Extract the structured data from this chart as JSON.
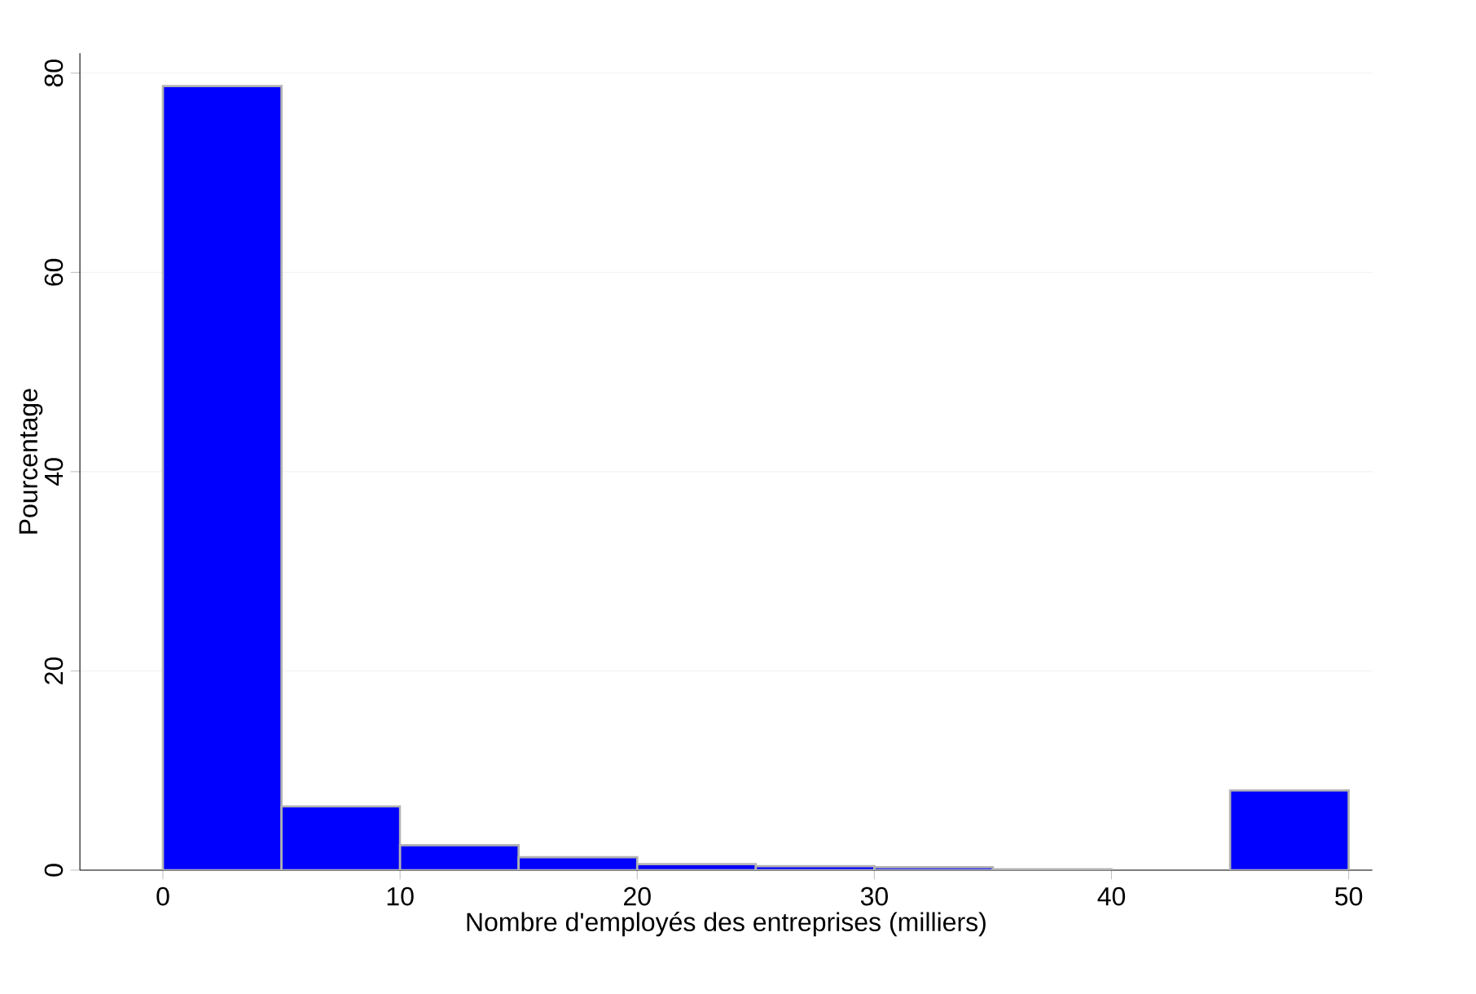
{
  "chart_data": {
    "type": "histogram",
    "xlabel": "Nombre d'employés des entreprises (milliers)",
    "ylabel": "Pourcentage",
    "bins": [
      0,
      5,
      10,
      15,
      20,
      25,
      30,
      35,
      40,
      45,
      50
    ],
    "values": [
      78.7,
      6.4,
      2.5,
      1.3,
      0.6,
      0.4,
      0.3,
      0.1,
      null,
      8.0
    ],
    "color": "#0000ff",
    "xlim": [
      -3.5,
      51
    ],
    "ylim": [
      0,
      82
    ],
    "xticks": [
      0,
      10,
      20,
      30,
      40,
      50
    ],
    "yticks": [
      0,
      20,
      40,
      60,
      80
    ],
    "grid": "y"
  }
}
